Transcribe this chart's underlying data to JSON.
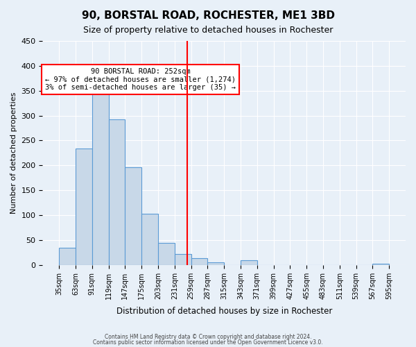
{
  "title": "90, BORSTAL ROAD, ROCHESTER, ME1 3BD",
  "subtitle": "Size of property relative to detached houses in Rochester",
  "xlabel": "Distribution of detached houses by size in Rochester",
  "ylabel": "Number of detached properties",
  "bar_color": "#c8d8e8",
  "bar_edge_color": "#5b9bd5",
  "vline_x": 252,
  "vline_color": "red",
  "annotation_title": "90 BORSTAL ROAD: 252sqm",
  "annotation_line1": "← 97% of detached houses are smaller (1,274)",
  "annotation_line2": "3% of semi-detached houses are larger (35) →",
  "annotation_box_color": "white",
  "annotation_box_edge": "red",
  "bins": [
    35,
    63,
    91,
    119,
    147,
    175,
    203,
    231,
    259,
    287,
    315,
    343,
    371,
    399,
    427,
    455,
    483,
    511,
    539,
    567,
    595
  ],
  "bar_heights": [
    35,
    234,
    364,
    293,
    196,
    103,
    45,
    22,
    13,
    5,
    0,
    9,
    0,
    0,
    0,
    0,
    0,
    0,
    0,
    2
  ],
  "ylim": [
    0,
    450
  ],
  "yticks": [
    0,
    50,
    100,
    150,
    200,
    250,
    300,
    350,
    400,
    450
  ],
  "footer1": "Contains HM Land Registry data © Crown copyright and database right 2024.",
  "footer2": "Contains public sector information licensed under the Open Government Licence v3.0.",
  "bg_color": "#e8f0f8",
  "plot_bg_color": "#e8f0f8"
}
